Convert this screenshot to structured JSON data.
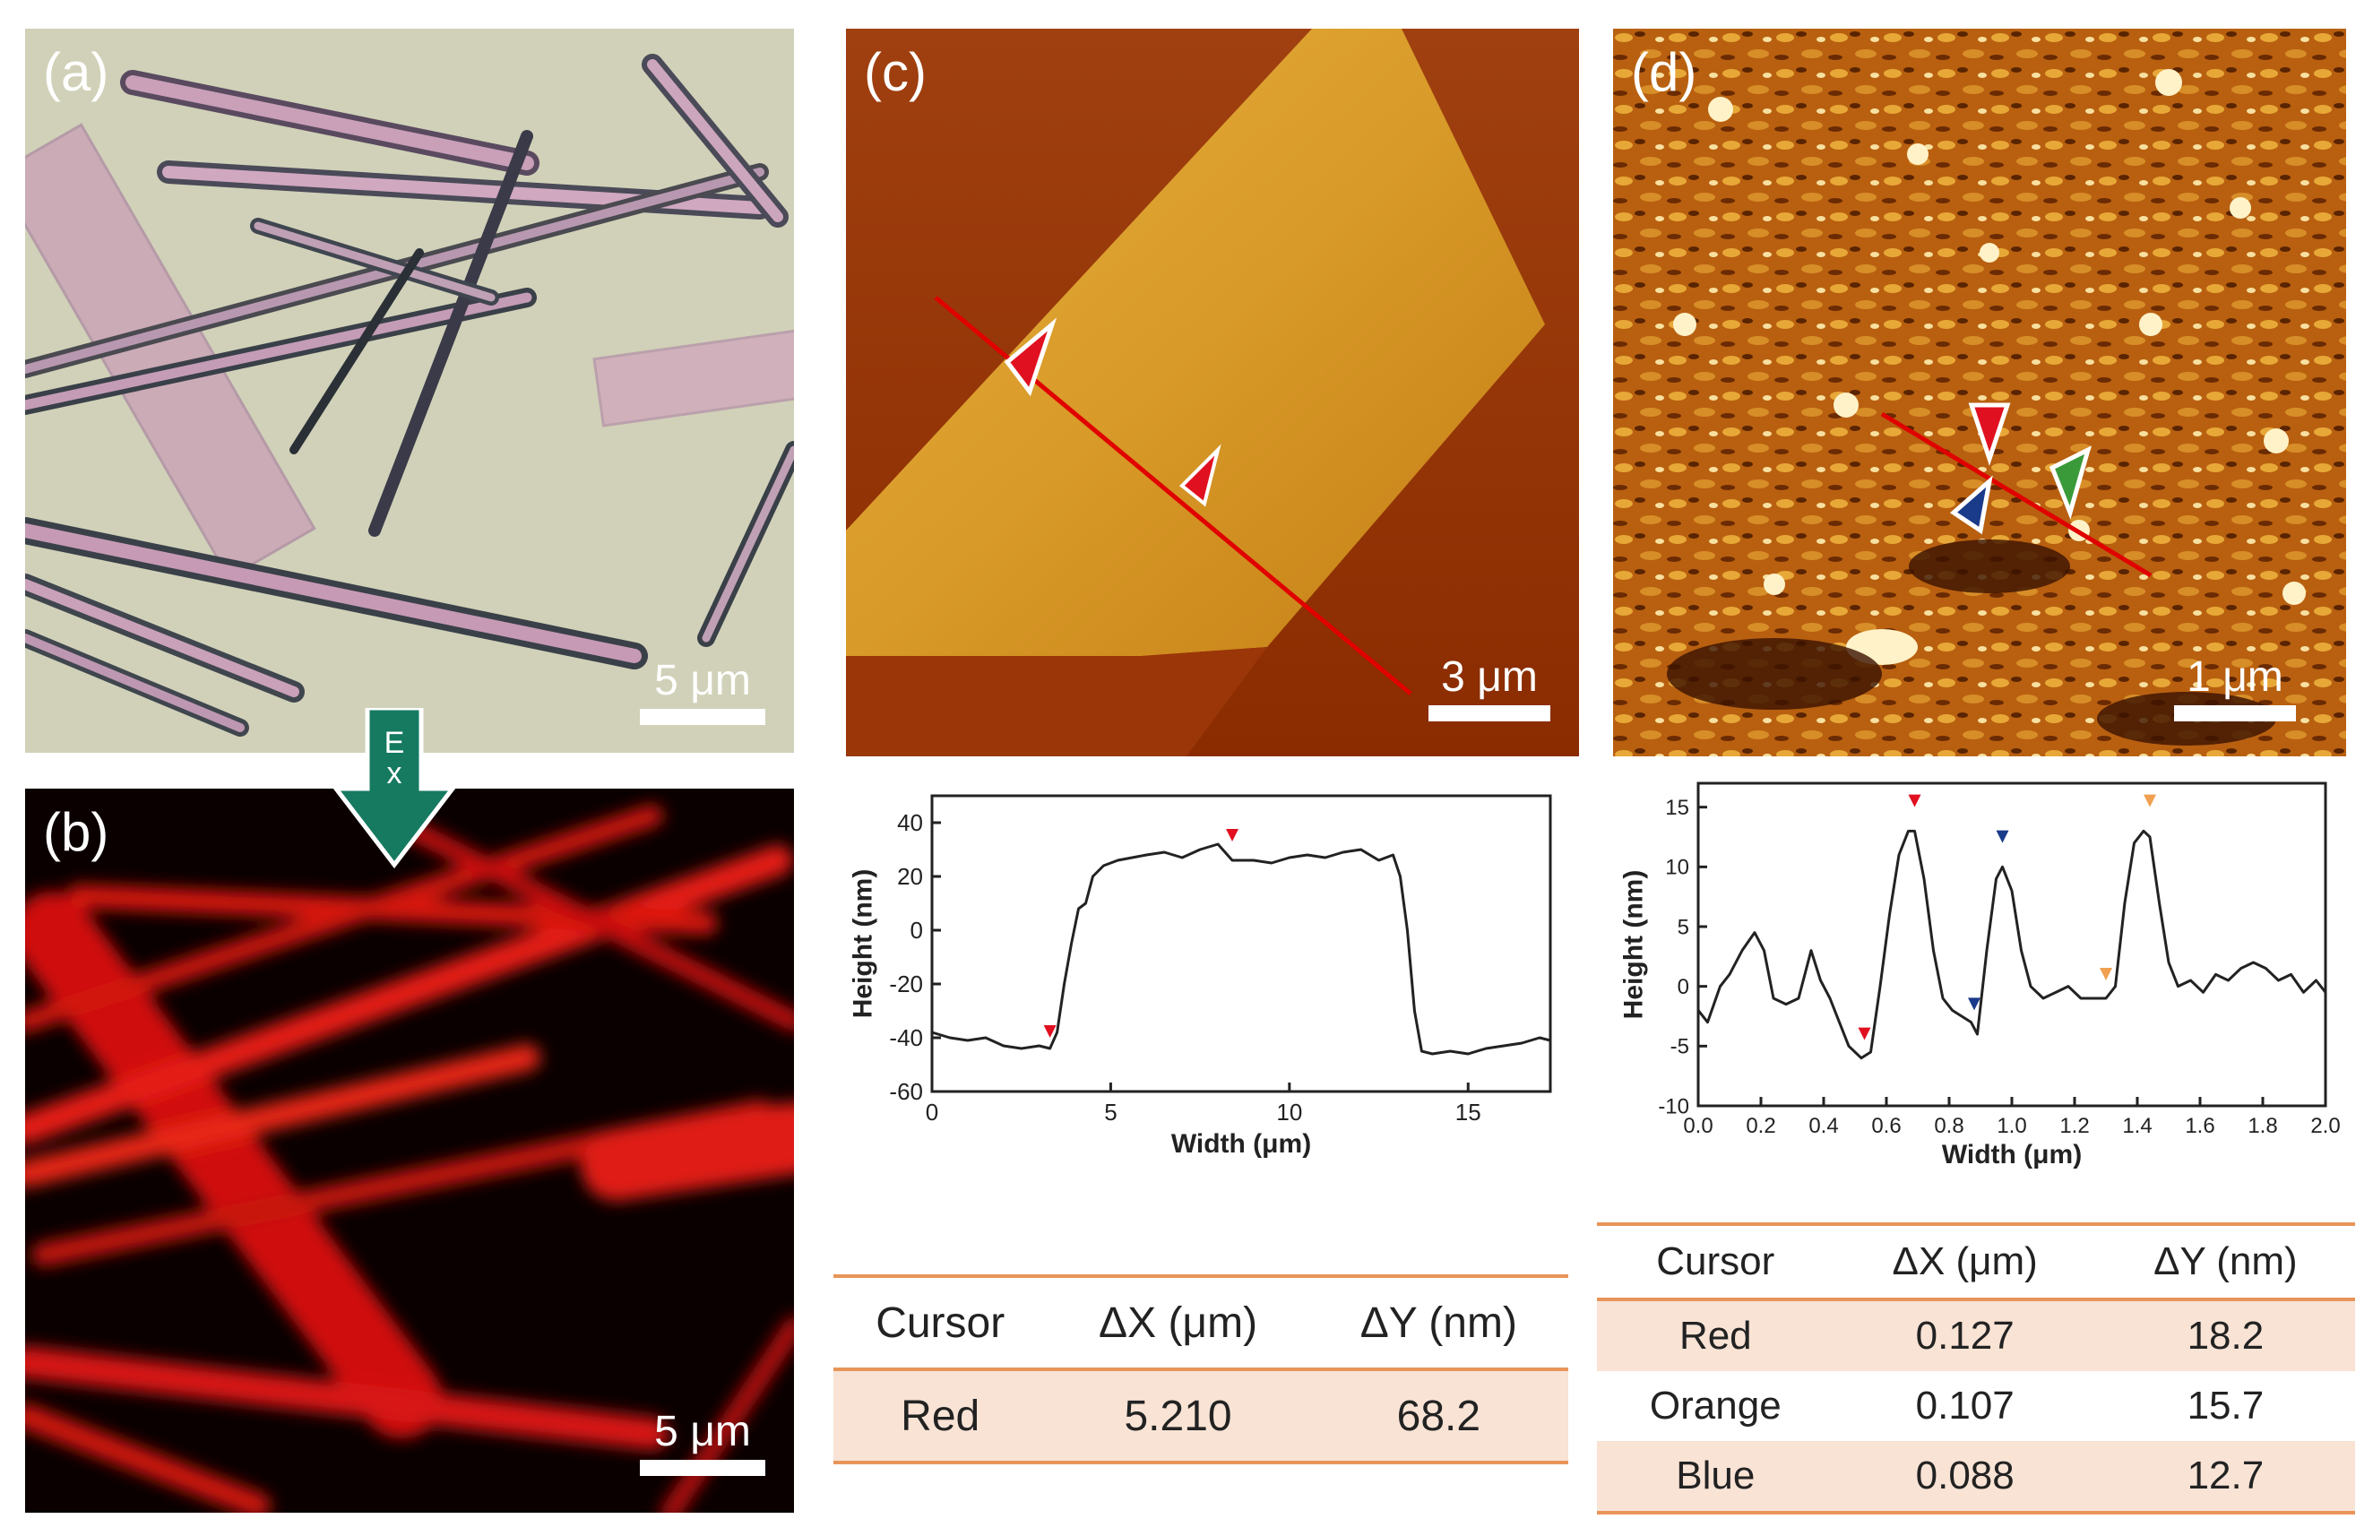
{
  "panels": {
    "a": {
      "label": "(a)",
      "scale": "5 μm"
    },
    "b": {
      "label": "(b)",
      "scale": "5 μm",
      "arrow_label": "Ex"
    },
    "c": {
      "label": "(c)",
      "scale": "3 μm"
    },
    "d": {
      "label": "(d)",
      "scale": "1 μm"
    }
  },
  "colors": {
    "axis": "#222222",
    "line": "#222222",
    "red_marker": "#e01020",
    "blue_marker": "#1a3a8a",
    "orange_marker": "#f0a050",
    "green_marker": "#3a9a3a",
    "table_rule": "#e8955a",
    "table_shade": "#f8e3d5",
    "arrow": "#127a5e"
  },
  "chart_data": [
    {
      "type": "line",
      "panel": "c",
      "title": "",
      "xlabel": "Width (μm)",
      "ylabel": "Height (nm)",
      "xlim": [
        0,
        17.3
      ],
      "ylim": [
        -60,
        50
      ],
      "xticks": [
        "0",
        "5",
        "10",
        "15"
      ],
      "yticks": [
        "40",
        "20",
        "0",
        "-20",
        "-40",
        "-60"
      ],
      "series": [
        {
          "x": [
            0,
            0.5,
            1.0,
            1.5,
            2.0,
            2.5,
            3.0,
            3.3,
            3.5,
            3.7,
            3.9,
            4.1,
            4.3,
            4.5,
            4.8,
            5.2,
            5.6,
            6.0,
            6.5,
            7.0,
            7.5,
            8.0,
            8.4,
            9.0,
            9.5,
            10.0,
            10.5,
            11.0,
            11.5,
            12.0,
            12.5,
            12.9,
            13.1,
            13.3,
            13.5,
            13.7,
            14.0,
            14.5,
            15.0,
            15.5,
            16.0,
            16.5,
            17.0,
            17.3
          ],
          "y": [
            -38,
            -40,
            -41,
            -40,
            -43,
            -44,
            -43,
            -44,
            -38,
            -20,
            -5,
            8,
            10,
            20,
            24,
            26,
            27,
            28,
            29,
            27,
            30,
            32,
            26,
            26,
            25,
            27,
            28,
            27,
            29,
            30,
            26,
            28,
            20,
            0,
            -30,
            -45,
            -46,
            -45,
            -46,
            -44,
            -43,
            -42,
            -40,
            -41
          ]
        }
      ],
      "markers": [
        {
          "color": "red",
          "x": 3.3,
          "y": -40
        },
        {
          "color": "red",
          "x": 8.4,
          "y": 33
        }
      ]
    },
    {
      "type": "line",
      "panel": "d",
      "title": "",
      "xlabel": "Width (μm)",
      "ylabel": "Height (nm)",
      "xlim": [
        0,
        2.0
      ],
      "ylim": [
        -10,
        17
      ],
      "xticks": [
        "0.0",
        "0.2",
        "0.4",
        "0.6",
        "0.8",
        "1.0",
        "1.2",
        "1.4",
        "1.6",
        "1.8",
        "2.0"
      ],
      "yticks": [
        "15",
        "10",
        "5",
        "0",
        "-5",
        "-10"
      ],
      "series": [
        {
          "x": [
            0.0,
            0.03,
            0.07,
            0.1,
            0.14,
            0.18,
            0.21,
            0.24,
            0.28,
            0.32,
            0.36,
            0.39,
            0.42,
            0.45,
            0.48,
            0.52,
            0.55,
            0.58,
            0.61,
            0.64,
            0.67,
            0.69,
            0.72,
            0.75,
            0.78,
            0.81,
            0.84,
            0.87,
            0.89,
            0.92,
            0.95,
            0.97,
            1.0,
            1.03,
            1.06,
            1.1,
            1.14,
            1.18,
            1.22,
            1.26,
            1.3,
            1.33,
            1.36,
            1.39,
            1.42,
            1.44,
            1.47,
            1.5,
            1.53,
            1.57,
            1.61,
            1.65,
            1.69,
            1.73,
            1.77,
            1.81,
            1.85,
            1.89,
            1.93,
            1.97,
            2.0
          ],
          "y": [
            -2,
            -3,
            0,
            1,
            3,
            4.5,
            3,
            -1,
            -1.5,
            -1,
            3,
            0.5,
            -1,
            -3,
            -5,
            -6,
            -5.5,
            0,
            6,
            11,
            13,
            13,
            9,
            3,
            -1,
            -2,
            -2.5,
            -3,
            -4,
            3,
            9,
            10,
            8,
            3,
            0,
            -1,
            -0.5,
            0,
            -1,
            -1,
            -1,
            0,
            7,
            12,
            13,
            12.5,
            7,
            2,
            0,
            0.5,
            -0.5,
            1,
            0.5,
            1.5,
            2,
            1.5,
            0.5,
            1,
            -0.5,
            0.5,
            -0.5
          ]
        }
      ],
      "markers": [
        {
          "color": "red",
          "x": 0.53,
          "y": -4.5
        },
        {
          "color": "red",
          "x": 0.69,
          "y": 15
        },
        {
          "color": "blue",
          "x": 0.88,
          "y": -2
        },
        {
          "color": "blue",
          "x": 0.97,
          "y": 12
        },
        {
          "color": "orange",
          "x": 1.3,
          "y": 0.5
        },
        {
          "color": "orange",
          "x": 1.44,
          "y": 15
        }
      ]
    }
  ],
  "table_c": {
    "headers": [
      "Cursor",
      "ΔX (μm)",
      "ΔY (nm)"
    ],
    "rows": [
      [
        "Red",
        "5.210",
        "68.2"
      ]
    ]
  },
  "table_d": {
    "headers": [
      "Cursor",
      "ΔX (μm)",
      "ΔY (nm)"
    ],
    "rows": [
      [
        "Red",
        "0.127",
        "18.2"
      ],
      [
        "Orange",
        "0.107",
        "15.7"
      ],
      [
        "Blue",
        "0.088",
        "12.7"
      ]
    ]
  }
}
